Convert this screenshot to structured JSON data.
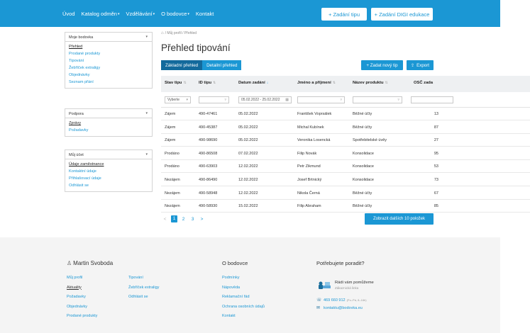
{
  "header": {
    "nav": [
      {
        "label": "Úvod",
        "caret": false
      },
      {
        "label": "Katalog odměn",
        "caret": true
      },
      {
        "label": "Vzdělávání",
        "caret": true
      },
      {
        "label": "O bodovce",
        "caret": true
      },
      {
        "label": "Kontakt",
        "caret": false
      }
    ],
    "btn_tip": "+ Zadání tipu",
    "btn_digi": "+ Zadání DIGI edukace"
  },
  "sidebar": {
    "box1": {
      "select": "Moje bodovka",
      "items": [
        "Přehled",
        "Prodané produkty",
        "Tipování",
        "Žebříček extraligy",
        "Objednávky",
        "Seznam přání"
      ],
      "active": 0
    },
    "box2": {
      "select": "Podpora",
      "items": [
        "Zprávy",
        "Požadavky"
      ],
      "active": 0
    },
    "box3": {
      "select": "Můj účet",
      "items": [
        "Údaje zaměstnance",
        "Kontaktní údaje",
        "Přihlašovací údaje",
        "Odhlásit se"
      ],
      "active": 0
    }
  },
  "main": {
    "breadcrumb": "/ Můj profil / Přehled",
    "title": "Přehled tipování",
    "tabs": [
      "Základní přehled",
      "Detailní přehled"
    ],
    "btn_new": "+ Zadat nový tip",
    "btn_export": "Export",
    "columns": [
      "Stav tipu",
      "ID tipu",
      "Datum zadání",
      "Jméno a příjmení",
      "Název produktu",
      "OSČ zada"
    ],
    "filters": {
      "status_placeholder": "Vyberte",
      "date_range": "05.02.2022 - 25.02.2022"
    },
    "rows": [
      [
        "Zájem",
        "490-47461",
        "05.02.2022",
        "František Voprsálek",
        "Běžné účty",
        "13"
      ],
      [
        "Zájem",
        "490-45387",
        "05.02.2022",
        "Michal Kubínek",
        "Běžné účty",
        "87"
      ],
      [
        "Zájem",
        "490-98690",
        "05.02.2022",
        "Veronika Losencká",
        "Spotřebitelské úvěy",
        "27"
      ],
      [
        "Prodáno",
        "490-86508",
        "07.02.2022",
        "Filip Novák",
        "Konsolidace",
        "95"
      ],
      [
        "Prodáno",
        "490-63903",
        "12.02.2022",
        "Petr Zikmund",
        "Konsolidace",
        "53"
      ],
      [
        "Nezájem",
        "490-86490",
        "12.02.2022",
        "Josef Brtnický",
        "Konsolidace",
        "73"
      ],
      [
        "Nezájem",
        "490-58948",
        "12.02.2022",
        "Nikola Černá",
        "Běžné účty",
        "67"
      ],
      [
        "Nezájem",
        "490-58930",
        "15.02.2022",
        "Filip Abraham",
        "Běžné účty",
        "85"
      ]
    ],
    "pager": {
      "prev": "<",
      "pages": [
        "1",
        "2",
        "3"
      ],
      "next": ">",
      "current": "1"
    },
    "btn_more": "Zobrazit dalších 10 položek"
  },
  "footer": {
    "user": "Martin Svoboda",
    "col1": [
      "Můj profil",
      "Aktuality",
      "Požadavky",
      "Objednávky",
      "Prodané produkty"
    ],
    "col1_active": 1,
    "col2": [
      "Tipování",
      "Žebříček extraligy",
      "Odhlásit se"
    ],
    "about_head": "O bodovce",
    "about": [
      "Podmínky",
      "Nápověda",
      "Reklamační řád",
      "Ochrana osobních údajů",
      "Kontakt"
    ],
    "help_head": "Potřebujete poradit?",
    "help_title": "Rádi vám pomůžeme",
    "help_sub": "Zákaznická linka",
    "phone": "469 660 912",
    "phone_hours": "(Po–Pá, 8–16h)",
    "email": "kontaktu@bodovka.eu"
  },
  "colors": {
    "brand": "#1b97d4",
    "brand_dark": "#136a9c"
  }
}
